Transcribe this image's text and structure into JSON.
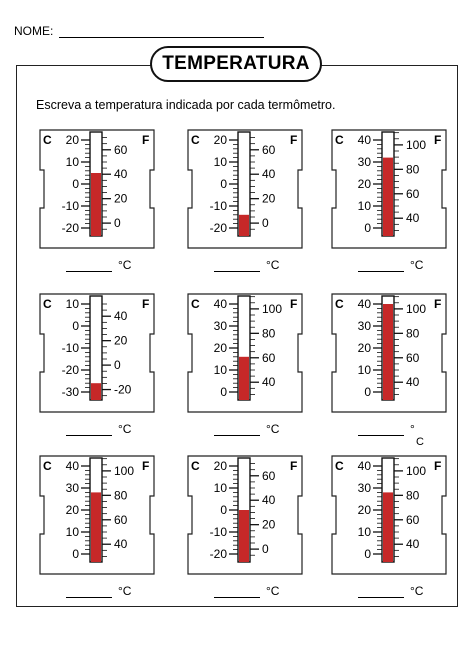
{
  "header": {
    "name_label": "NOME:"
  },
  "title": "TEMPERATURA",
  "instruction": "Escreva a temperatura indicada por cada termômetro.",
  "scale_labels": {
    "celsius": "C",
    "fahrenheit": "F"
  },
  "answer_unit": "°C",
  "card7_unit_split": [
    "°",
    "C"
  ],
  "colors": {
    "mercury": "#c62828",
    "ink": "#111111"
  },
  "thermometers": [
    {
      "c_ticks": [
        "20",
        "10",
        "0",
        "-10",
        "-20"
      ],
      "f_ticks": [
        "60",
        "40",
        "20",
        "0"
      ],
      "c_min": -20,
      "c_max": 20,
      "reading_c": 5
    },
    {
      "c_ticks": [
        "20",
        "10",
        "0",
        "-10",
        "-20"
      ],
      "f_ticks": [
        "60",
        "40",
        "20",
        "0"
      ],
      "c_min": -20,
      "c_max": 20,
      "reading_c": -14
    },
    {
      "c_ticks": [
        "40",
        "30",
        "20",
        "10",
        "0"
      ],
      "f_ticks": [
        "100",
        "80",
        "60",
        "40"
      ],
      "c_min": 0,
      "c_max": 40,
      "reading_c": 32
    },
    {
      "c_ticks": [
        "10",
        "0",
        "-10",
        "-20",
        "-30"
      ],
      "f_ticks": [
        "40",
        "20",
        "0",
        "-20"
      ],
      "c_min": -30,
      "c_max": 10,
      "reading_c": -26
    },
    {
      "c_ticks": [
        "40",
        "30",
        "20",
        "10",
        "0"
      ],
      "f_ticks": [
        "100",
        "80",
        "60",
        "40"
      ],
      "c_min": 0,
      "c_max": 40,
      "reading_c": 16
    },
    {
      "c_ticks": [
        "40",
        "30",
        "20",
        "10",
        "0"
      ],
      "f_ticks": [
        "100",
        "80",
        "60",
        "40"
      ],
      "c_min": 0,
      "c_max": 40,
      "reading_c": 40
    },
    {
      "c_ticks": [
        "40",
        "30",
        "20",
        "10",
        "0"
      ],
      "f_ticks": [
        "100",
        "80",
        "60",
        "40"
      ],
      "c_min": 0,
      "c_max": 40,
      "reading_c": 28
    },
    {
      "c_ticks": [
        "20",
        "10",
        "0",
        "-10",
        "-20"
      ],
      "f_ticks": [
        "60",
        "40",
        "20",
        "0"
      ],
      "c_min": -20,
      "c_max": 20,
      "reading_c": 0
    },
    {
      "c_ticks": [
        "40",
        "30",
        "20",
        "10",
        "0"
      ],
      "f_ticks": [
        "100",
        "80",
        "60",
        "40"
      ],
      "c_min": 0,
      "c_max": 40,
      "reading_c": 28
    }
  ]
}
